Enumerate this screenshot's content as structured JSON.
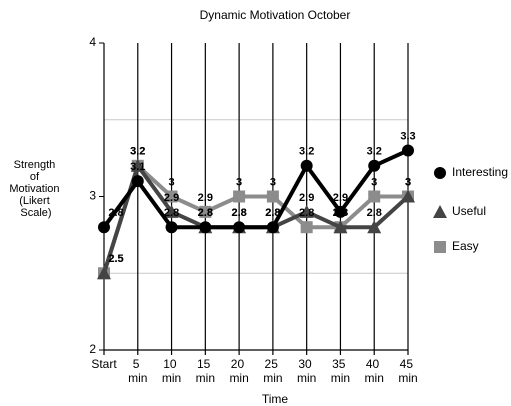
{
  "chart_data": {
    "type": "line",
    "title": "Dynamic Motivation October",
    "x_label": "Time",
    "y_label": "Strength of Motivation (Likert Scale)",
    "categories": [
      "Start",
      "5 min",
      "10 min",
      "15 min",
      "20 min",
      "25 min",
      "30 min",
      "35 min",
      "40 min",
      "45 min"
    ],
    "ylim": [
      2,
      4
    ],
    "yticks": [
      2,
      3,
      4
    ],
    "minor_grid": [
      2.5,
      3.5
    ],
    "series": [
      {
        "name": "Interesting",
        "color": "#000000",
        "marker": "circle",
        "values": [
          2.8,
          3.1,
          2.8,
          2.8,
          2.8,
          2.8,
          3.2,
          2.9,
          3.2,
          3.3
        ]
      },
      {
        "name": "Useful",
        "color": "#444444",
        "marker": "triangle",
        "values": [
          2.5,
          3.2,
          2.9,
          2.8,
          2.8,
          2.8,
          2.9,
          2.8,
          2.8,
          3
        ]
      },
      {
        "name": "Easy",
        "color": "#8c8c8c",
        "marker": "square",
        "values": [
          2.5,
          3.2,
          3,
          2.9,
          3,
          3,
          2.8,
          2.8,
          3,
          3
        ]
      }
    ]
  }
}
